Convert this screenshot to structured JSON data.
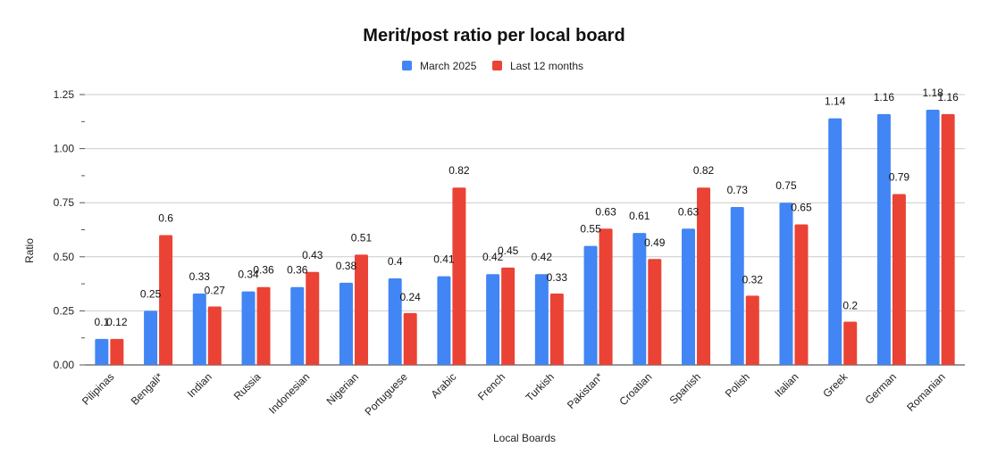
{
  "chart_data": {
    "type": "bar",
    "title": "Merit/post ratio per local board",
    "xlabel": "Local Boards",
    "ylabel": "Ratio",
    "ylim": [
      0,
      1.25
    ],
    "yticks": [
      "0.00",
      "0.25",
      "0.50",
      "0.75",
      "1.00",
      "1.25"
    ],
    "grid": true,
    "legend_position": "top",
    "categories": [
      "Pilipinas",
      "Bengali*",
      "Indian",
      "Russia",
      "Indonesian",
      "Nigerian",
      "Portuguese",
      "Arabic",
      "French",
      "Turkish",
      "Pakistan*",
      "Croatian",
      "Spanish",
      "Polish",
      "Italian",
      "Greek",
      "German",
      "Romanian"
    ],
    "series": [
      {
        "name": "March 2025",
        "color": "#4285f4",
        "values": [
          0.12,
          0.25,
          0.33,
          0.34,
          0.36,
          0.38,
          0.4,
          0.41,
          0.42,
          0.42,
          0.55,
          0.61,
          0.63,
          0.73,
          0.75,
          1.14,
          1.16,
          1.18
        ],
        "labels": [
          "0.1",
          "0.25",
          "0.33",
          "0.34",
          "0.36",
          "0.38",
          "0.4",
          "0.41",
          "0.42",
          "0.42",
          "0.55",
          "0.61",
          "0.63",
          "0.73",
          "0.75",
          "1.14",
          "1.16",
          "1.18"
        ]
      },
      {
        "name": "Last 12 months",
        "color": "#ea4335",
        "values": [
          0.12,
          0.6,
          0.27,
          0.36,
          0.43,
          0.51,
          0.24,
          0.82,
          0.45,
          0.33,
          0.63,
          0.49,
          0.82,
          0.32,
          0.65,
          0.2,
          0.79,
          1.16
        ],
        "labels": [
          "0.12",
          "0.6",
          "0.27",
          "0.36",
          "0.43",
          "0.51",
          "0.24",
          "0.82",
          "0.45",
          "0.33",
          "0.63",
          "0.49",
          "0.82",
          "0.32",
          "0.65",
          "0.2",
          "0.79",
          "1.16"
        ]
      }
    ]
  }
}
